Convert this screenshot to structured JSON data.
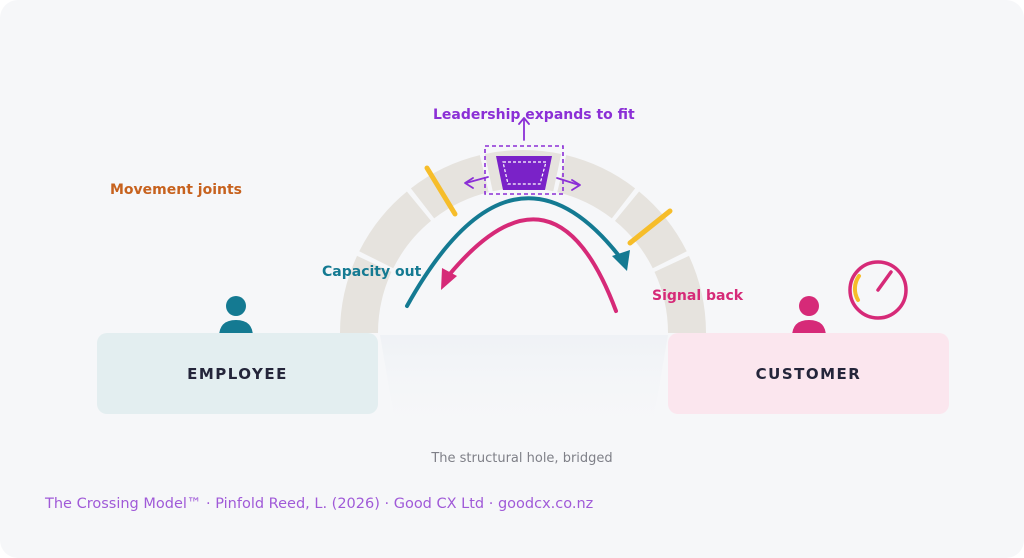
{
  "labels": {
    "leadership": "Leadership expands to fit",
    "movement_joints": "Movement joints",
    "capacity_out": "Capacity out",
    "signal_back": "Signal back"
  },
  "boxes": {
    "employee": "EMPLOYEE",
    "customer": "CUSTOMER"
  },
  "caption": "The structural hole, bridged",
  "footer": "The Crossing Model™ · Pinfold Reed, L. (2026) · Good CX Ltd · goodcx.co.nz",
  "colors": {
    "arch_stone": "#e6e3de",
    "keystone": "#7a22c8",
    "leadership": "#8b2fd6",
    "joint": "#f6bd2a",
    "movement_joints": "#c7621e",
    "capacity": "#147a92",
    "signal": "#d62a78",
    "employee_box": "#e3eef0",
    "customer_box": "#fbe6ee",
    "employee_icon": "#147a92",
    "customer_icon": "#d62a78",
    "footer": "#a05ad8",
    "caption": "#7f8088"
  },
  "icons": {
    "employee": "person-icon",
    "customer": "person-icon",
    "gauge": "gauge-icon"
  }
}
